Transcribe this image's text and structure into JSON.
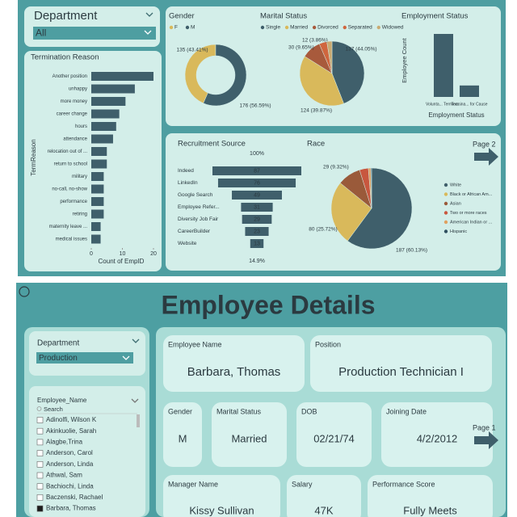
{
  "slicer": {
    "label": "Department",
    "value": "All"
  },
  "nav": "Page 2",
  "chart_data": [
    {
      "type": "hbar",
      "title": "Termination Reason",
      "categories": [
        "Another position",
        "unhappy",
        "more money",
        "career change",
        "hours",
        "attendance",
        "relocation out of ...",
        "return to school",
        "military",
        "no-call, no-show",
        "performance",
        "retiring",
        "maternity leave ...",
        "medical issues"
      ],
      "values": [
        20,
        14,
        11,
        9,
        8,
        7,
        5,
        5,
        4,
        4,
        4,
        4,
        3,
        3
      ],
      "color": "#3f5f6b",
      "xlim": [
        0,
        20
      ],
      "xticks": [
        0,
        10,
        20
      ],
      "xlabel": "Count of EmpID",
      "ylabel": "TermReason"
    },
    {
      "type": "donut",
      "title": "Gender",
      "categories": [
        "F",
        "M"
      ],
      "values": [
        135,
        176
      ],
      "value_labels": [
        "135 (43.41%)",
        "176 (56.59%)"
      ],
      "colors": [
        "#d9b95b",
        "#3f5f6b"
      ]
    },
    {
      "type": "pie",
      "title": "Marital Status",
      "categories": [
        "Single",
        "Married",
        "Divorced",
        "Separated",
        "Widowed"
      ],
      "values": [
        137,
        124,
        30,
        12,
        8
      ],
      "value_labels": [
        "137 (44.05%)",
        "124 (39.87%)",
        "30 (9.65%)",
        "12 (3.86%)",
        null
      ],
      "colors": [
        "#3f5f6b",
        "#d9b95b",
        "#a85a3c",
        "#d0663e",
        "#c9aa72"
      ]
    },
    {
      "type": "bar",
      "title": "Employment Status",
      "categories": [
        "Volunta... Termina...",
        "Termina... for Cause"
      ],
      "values": [
        88,
        16
      ],
      "ylim": [
        0,
        88
      ],
      "ylabel": "Employee Count",
      "xlabel": "Employment Status",
      "color": "#3f5f6b"
    },
    {
      "type": "funnel",
      "title": "Recruitment Source",
      "categories": [
        "Indeed",
        "LinkedIn",
        "Google Search",
        "Employee Refer...",
        "Diversity Job Fair",
        "CareerBuilder",
        "Website"
      ],
      "values": [
        87,
        76,
        49,
        31,
        29,
        23,
        13
      ],
      "color": "#3f5f6b",
      "top_label": "100%",
      "bottom_label": "14.9%"
    },
    {
      "type": "pie",
      "title": "Race",
      "categories": [
        "White",
        "Black or African Am...",
        "Asian",
        "Two or more races",
        "American Indian or ...",
        "Hispanic"
      ],
      "values": [
        187,
        80,
        29,
        11,
        3,
        1
      ],
      "value_labels": [
        "187 (60.13%)",
        "80 (25.72%)",
        "29 (9.32%)",
        null,
        null,
        null
      ],
      "colors": [
        "#3f5f6b",
        "#d9b95b",
        "#9a5a3a",
        "#c8573f",
        "#e0a060",
        "#2f4f5f"
      ]
    }
  ],
  "details": {
    "title": "Employee Details",
    "department_slicer": {
      "label": "Department",
      "value": "Production"
    },
    "employee_list": {
      "title": "Employee_Name",
      "search_placeholder": "Search",
      "names": [
        {
          "name": "Adinolfi, Wilson K",
          "checked": false
        },
        {
          "name": "Akinkuolie, Sarah",
          "checked": false
        },
        {
          "name": "Alagbe,Trina",
          "checked": false
        },
        {
          "name": "Anderson, Carol",
          "checked": false
        },
        {
          "name": "Anderson, Linda",
          "checked": false
        },
        {
          "name": "Athwal, Sam",
          "checked": false
        },
        {
          "name": "Bachiochi, Linda",
          "checked": false
        },
        {
          "name": "Baczenski, Rachael",
          "checked": false
        },
        {
          "name": "Barbara, Thomas",
          "checked": true
        }
      ]
    },
    "cards": [
      {
        "label": "Employee Name",
        "value": "Barbara, Thomas"
      },
      {
        "label": "Position",
        "value": "Production Technician I"
      },
      {
        "label": "Gender",
        "value": "M"
      },
      {
        "label": "Marital Status",
        "value": "Married"
      },
      {
        "label": "DOB",
        "value": "02/21/74"
      },
      {
        "label": "Joining Date",
        "value": "4/2/2012"
      },
      {
        "label": "Manager Name",
        "value": "Kissy Sullivan"
      },
      {
        "label": "Salary",
        "value": "47K"
      },
      {
        "label": "Performance Score",
        "value": "Fully Meets"
      }
    ],
    "nav": "Page 1"
  }
}
